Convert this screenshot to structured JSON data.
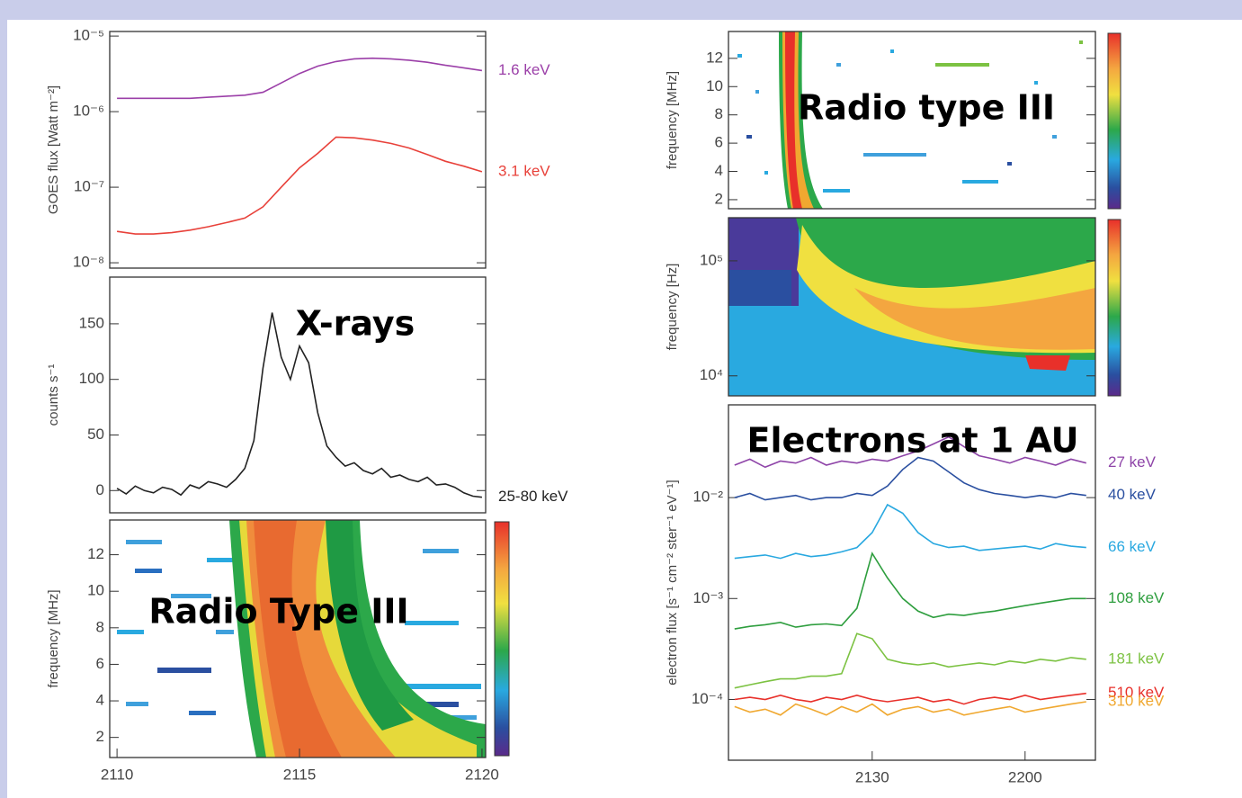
{
  "chart_data": [
    {
      "type": "line",
      "ylog": true,
      "ylabel": "GOES flux [Watt m⁻²]",
      "xlim": [
        2109.8,
        2120.1
      ],
      "ylim": [
        8.5e-09,
        1.15e-05
      ],
      "yticks": [
        {
          "value": 1e-08,
          "label": "10⁻⁸"
        },
        {
          "value": 1e-07,
          "label": "10⁻⁷"
        },
        {
          "value": 1e-06,
          "label": "10⁻⁶"
        },
        {
          "value": 1e-05,
          "label": "10⁻⁵"
        }
      ],
      "x": [
        2110,
        2110.5,
        2111,
        2111.5,
        2112,
        2112.5,
        2113,
        2113.5,
        2114,
        2114.5,
        2115,
        2115.5,
        2116,
        2116.5,
        2117,
        2117.5,
        2118,
        2118.5,
        2119,
        2119.5,
        2120
      ],
      "series": [
        {
          "name": "1.6 keV",
          "color": "#9b3fa8",
          "values": [
            1.5e-06,
            1.5e-06,
            1.5e-06,
            1.5e-06,
            1.5e-06,
            1.55e-06,
            1.6e-06,
            1.65e-06,
            1.8e-06,
            2.4e-06,
            3.2e-06,
            4e-06,
            4.6e-06,
            5e-06,
            5.1e-06,
            5e-06,
            4.8e-06,
            4.5e-06,
            4.1e-06,
            3.8e-06,
            3.5e-06
          ]
        },
        {
          "name": "3.1 keV",
          "color": "#e8413a",
          "values": [
            2.6e-08,
            2.4e-08,
            2.4e-08,
            2.5e-08,
            2.7e-08,
            3e-08,
            3.4e-08,
            3.9e-08,
            5.5e-08,
            1e-07,
            1.8e-07,
            2.8e-07,
            4.6e-07,
            4.5e-07,
            4.2e-07,
            3.8e-07,
            3.3e-07,
            2.7e-07,
            2.2e-07,
            1.9e-07,
            1.6e-07
          ]
        }
      ]
    },
    {
      "type": "line",
      "ylabel": "counts s⁻¹",
      "annotation": "X-rays",
      "xlim": [
        2109.8,
        2120.1
      ],
      "ylim": [
        -20,
        192
      ],
      "yticks": [
        0,
        50,
        100,
        150
      ],
      "x": [
        2110,
        2110.25,
        2110.5,
        2110.75,
        2111,
        2111.25,
        2111.5,
        2111.75,
        2112,
        2112.25,
        2112.5,
        2112.75,
        2113,
        2113.25,
        2113.5,
        2113.75,
        2114,
        2114.25,
        2114.5,
        2114.75,
        2115,
        2115.25,
        2115.5,
        2115.75,
        2116,
        2116.25,
        2116.5,
        2116.75,
        2117,
        2117.25,
        2117.5,
        2117.75,
        2118,
        2118.25,
        2118.5,
        2118.75,
        2119,
        2119.25,
        2119.5,
        2119.75,
        2120
      ],
      "series": [
        {
          "name": "25-80 keV",
          "color": "#222222",
          "values": [
            2,
            -3,
            4,
            0,
            -2,
            3,
            1,
            -4,
            5,
            2,
            8,
            6,
            3,
            10,
            20,
            45,
            110,
            160,
            120,
            100,
            130,
            115,
            70,
            40,
            30,
            22,
            25,
            18,
            15,
            20,
            12,
            14,
            10,
            8,
            12,
            5,
            6,
            3,
            -2,
            -5,
            -6
          ]
        }
      ]
    },
    {
      "type": "spectrogram",
      "ylabel": "frequency [MHz]",
      "annotation": "Radio Type III",
      "xlim": [
        2109.8,
        2120.1
      ],
      "xticks": [
        2110,
        2115,
        2120
      ],
      "ylim": [
        0.9,
        13.9
      ],
      "yticks": [
        2,
        4,
        6,
        8,
        10,
        12
      ]
    },
    {
      "type": "spectrogram",
      "ylabel": "frequency [MHz]",
      "annotation": "Radio type III",
      "ylim": [
        1.36,
        13.9
      ],
      "yticks": [
        2,
        4,
        6,
        8,
        10,
        12
      ]
    },
    {
      "type": "spectrogram",
      "ylog": true,
      "ylabel": "frequency  [Hz]",
      "ylim": [
        6700,
        237000
      ],
      "yticks": [
        {
          "value": 10000,
          "label": "10⁴"
        },
        {
          "value": 100000,
          "label": "10⁵"
        }
      ]
    },
    {
      "type": "line",
      "ylog": true,
      "ylabel": "electron flux [s⁻¹ cm⁻² ster⁻¹ eV⁻¹]",
      "annotation": "Electrons at 1 AU",
      "xlim": [
        21.03,
        22.23
      ],
      "xticks": [
        {
          "value": 21.5,
          "label": "2130"
        },
        {
          "value": 22,
          "label": "2200"
        }
      ],
      "ylim": [
        2.5e-05,
        0.083
      ],
      "yticks": [
        {
          "value": 0.0001,
          "label": "10⁻⁴"
        },
        {
          "value": 0.001,
          "label": "10⁻³"
        },
        {
          "value": 0.01,
          "label": "10⁻²"
        }
      ],
      "x": [
        21.05,
        21.1,
        21.15,
        21.2,
        21.25,
        21.3,
        21.35,
        21.4,
        21.45,
        21.5,
        21.55,
        21.6,
        21.65,
        21.7,
        21.75,
        21.8,
        21.85,
        21.9,
        21.95,
        22.0,
        22.05,
        22.1,
        22.15,
        22.2
      ],
      "series": [
        {
          "name": "27 keV",
          "color": "#8e44a8",
          "values": [
            0.021,
            0.024,
            0.02,
            0.023,
            0.022,
            0.025,
            0.021,
            0.023,
            0.022,
            0.024,
            0.023,
            0.026,
            0.029,
            0.034,
            0.04,
            0.032,
            0.026,
            0.024,
            0.022,
            0.025,
            0.023,
            0.021,
            0.024,
            0.022
          ]
        },
        {
          "name": "40 keV",
          "color": "#2a4fa0",
          "values": [
            0.01,
            0.011,
            0.0095,
            0.01,
            0.0105,
            0.0095,
            0.01,
            0.01,
            0.011,
            0.0105,
            0.013,
            0.019,
            0.025,
            0.023,
            0.018,
            0.014,
            0.012,
            0.011,
            0.0105,
            0.01,
            0.0105,
            0.01,
            0.011,
            0.0105
          ]
        },
        {
          "name": "66 keV",
          "color": "#29a8e0",
          "values": [
            0.0025,
            0.0026,
            0.0027,
            0.0025,
            0.0028,
            0.0026,
            0.0027,
            0.0029,
            0.0032,
            0.0045,
            0.0085,
            0.007,
            0.0045,
            0.0035,
            0.0032,
            0.0033,
            0.003,
            0.0031,
            0.0032,
            0.0033,
            0.0031,
            0.0035,
            0.0033,
            0.0032
          ]
        },
        {
          "name": "108 keV",
          "color": "#2e9e3e",
          "values": [
            0.0005,
            0.00053,
            0.00055,
            0.00058,
            0.00052,
            0.00055,
            0.00056,
            0.00054,
            0.0008,
            0.0028,
            0.0016,
            0.001,
            0.00075,
            0.00065,
            0.0007,
            0.00068,
            0.00072,
            0.00075,
            0.0008,
            0.00085,
            0.0009,
            0.00095,
            0.001,
            0.001
          ]
        },
        {
          "name": "181 keV",
          "color": "#7cc242",
          "values": [
            0.00013,
            0.00014,
            0.00015,
            0.00016,
            0.00016,
            0.00017,
            0.00017,
            0.00018,
            0.00045,
            0.0004,
            0.00025,
            0.00023,
            0.00022,
            0.00023,
            0.00021,
            0.00022,
            0.00023,
            0.00022,
            0.00024,
            0.00023,
            0.00025,
            0.00024,
            0.00026,
            0.00025
          ]
        },
        {
          "name": "510 keV",
          "color": "#e8302a",
          "values": [
            0.0001,
            0.000105,
            0.0001,
            0.00011,
            0.0001,
            9.5e-05,
            0.000105,
            0.0001,
            0.00011,
            0.0001,
            9.5e-05,
            0.0001,
            0.000105,
            9.5e-05,
            0.0001,
            9e-05,
            0.0001,
            0.000105,
            0.0001,
            0.00011,
            0.0001,
            0.000105,
            0.00011,
            0.000115
          ]
        },
        {
          "name": "310 keV",
          "color": "#f0a830",
          "values": [
            8.5e-05,
            7.5e-05,
            8e-05,
            7e-05,
            9e-05,
            8e-05,
            7e-05,
            8.5e-05,
            7.5e-05,
            9e-05,
            7e-05,
            8e-05,
            8.5e-05,
            7.5e-05,
            8e-05,
            7e-05,
            7.5e-05,
            8e-05,
            8.5e-05,
            7.5e-05,
            8e-05,
            8.5e-05,
            9e-05,
            9.5e-05
          ]
        }
      ]
    }
  ]
}
